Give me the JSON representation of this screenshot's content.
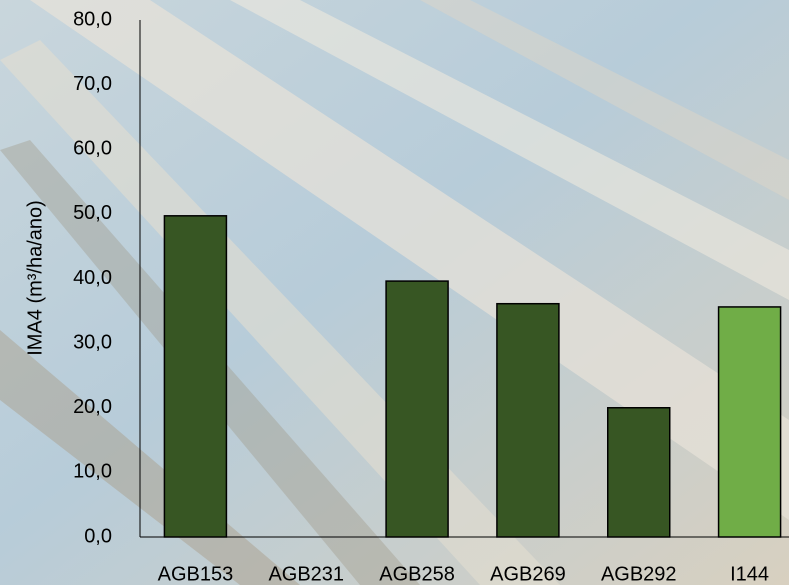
{
  "chart_data": {
    "type": "bar",
    "y_label": "IMA4 (m³/ha/ano)",
    "categories": [
      "AGB153",
      "AGB231",
      "AGB258",
      "AGB269",
      "AGB292",
      "I144"
    ],
    "values": [
      49.7,
      null,
      39.6,
      36.1,
      20.0,
      35.6
    ],
    "colors": [
      "#375623",
      "#375623",
      "#375623",
      "#375623",
      "#375623",
      "#70ad47"
    ],
    "ylim": [
      0,
      80
    ],
    "yticks": [
      {
        "value": 0,
        "label": "0,0"
      },
      {
        "value": 10,
        "label": "10,0"
      },
      {
        "value": 20,
        "label": "20,0"
      },
      {
        "value": 30,
        "label": "30,0"
      },
      {
        "value": 40,
        "label": "40,0"
      },
      {
        "value": 50,
        "label": "50,0"
      },
      {
        "value": 60,
        "label": "60,0"
      },
      {
        "value": 70,
        "label": "70,0"
      },
      {
        "value": 80,
        "label": "80,0"
      }
    ],
    "grid": false
  }
}
